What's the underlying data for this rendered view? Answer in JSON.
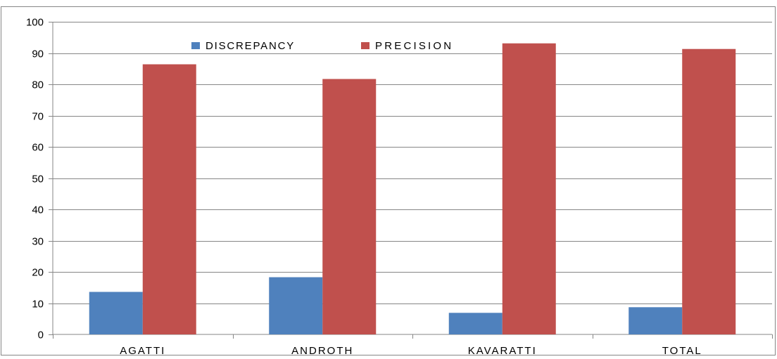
{
  "chart_data": {
    "type": "bar",
    "categories": [
      "AGATTI",
      "ANDROTH",
      "KAVARATTI",
      "TOTAL"
    ],
    "series": [
      {
        "name": "DISCREPANCY",
        "color": "#4F81BD",
        "values": [
          13.6,
          18.3,
          6.9,
          8.7
        ]
      },
      {
        "name": "PRECISION",
        "color": "#C0504D",
        "values": [
          86.4,
          81.7,
          93.1,
          91.3
        ]
      }
    ],
    "ylim": [
      0,
      100
    ],
    "yticks": [
      0,
      10,
      20,
      30,
      40,
      50,
      60,
      70,
      80,
      90,
      100
    ],
    "ytick_labels": [
      "0",
      "10",
      "20",
      "30",
      "40",
      "50",
      "60",
      "70",
      "80",
      "90",
      "100"
    ],
    "grid": true,
    "legend_position": "top-center",
    "title": "",
    "xlabel": "",
    "ylabel": ""
  }
}
